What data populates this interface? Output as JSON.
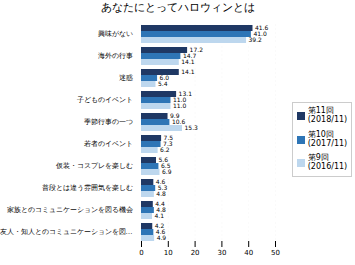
{
  "chart_data": {
    "type": "bar",
    "orientation": "horizontal",
    "title": "あなたにとってハロウィンとは",
    "categories": [
      "興味がない",
      "海外の行事",
      "迷惑",
      "子どものイベント",
      "季節行事の一つ",
      "若者のイベント",
      "仮装・コスプレを楽しむ",
      "普段とは違う雰囲気を楽しむ",
      "家族とのコミュニケーションを図る機会",
      "友人・知人とのコミュニケーションを図…"
    ],
    "series": [
      {
        "name": "第11回\n(2018/11)",
        "color": "#1f3864",
        "values": [
          41.6,
          17.2,
          14.1,
          13.1,
          9.9,
          7.5,
          5.6,
          4.6,
          4.4,
          4.2
        ],
        "value_labels": [
          "41.6",
          "17.2",
          "14.1",
          "13.1",
          "9.9",
          "7.5",
          "5.6",
          "4.6",
          "4.4",
          "4.2"
        ]
      },
      {
        "name": "第10回\n(2017/11)",
        "color": "#2e75b6",
        "values": [
          41.0,
          14.7,
          6.0,
          11.0,
          10.6,
          7.3,
          6.5,
          5.3,
          4.8,
          4.6
        ],
        "value_labels": [
          "41.0",
          "14.7",
          "6.0",
          "11.0",
          "10.6",
          "7.3",
          "6.5",
          "5.3",
          "4.8",
          "4.6"
        ]
      },
      {
        "name": "第9回\n(2016/11)",
        "color": "#bdd7ee",
        "values": [
          39.2,
          14.1,
          5.4,
          11.0,
          15.3,
          6.2,
          6.9,
          4.8,
          4.1,
          4.9
        ],
        "value_labels": [
          "39.2",
          "14.1",
          "5.4",
          "11.0",
          "15.3",
          "6.2",
          "6.9",
          "4.8",
          "4.1",
          "4.9"
        ]
      }
    ],
    "xlim": [
      0,
      50
    ],
    "xticks": [
      0,
      10,
      20,
      30,
      40,
      50
    ],
    "grid": true,
    "legend": "right",
    "data_labels": true
  }
}
